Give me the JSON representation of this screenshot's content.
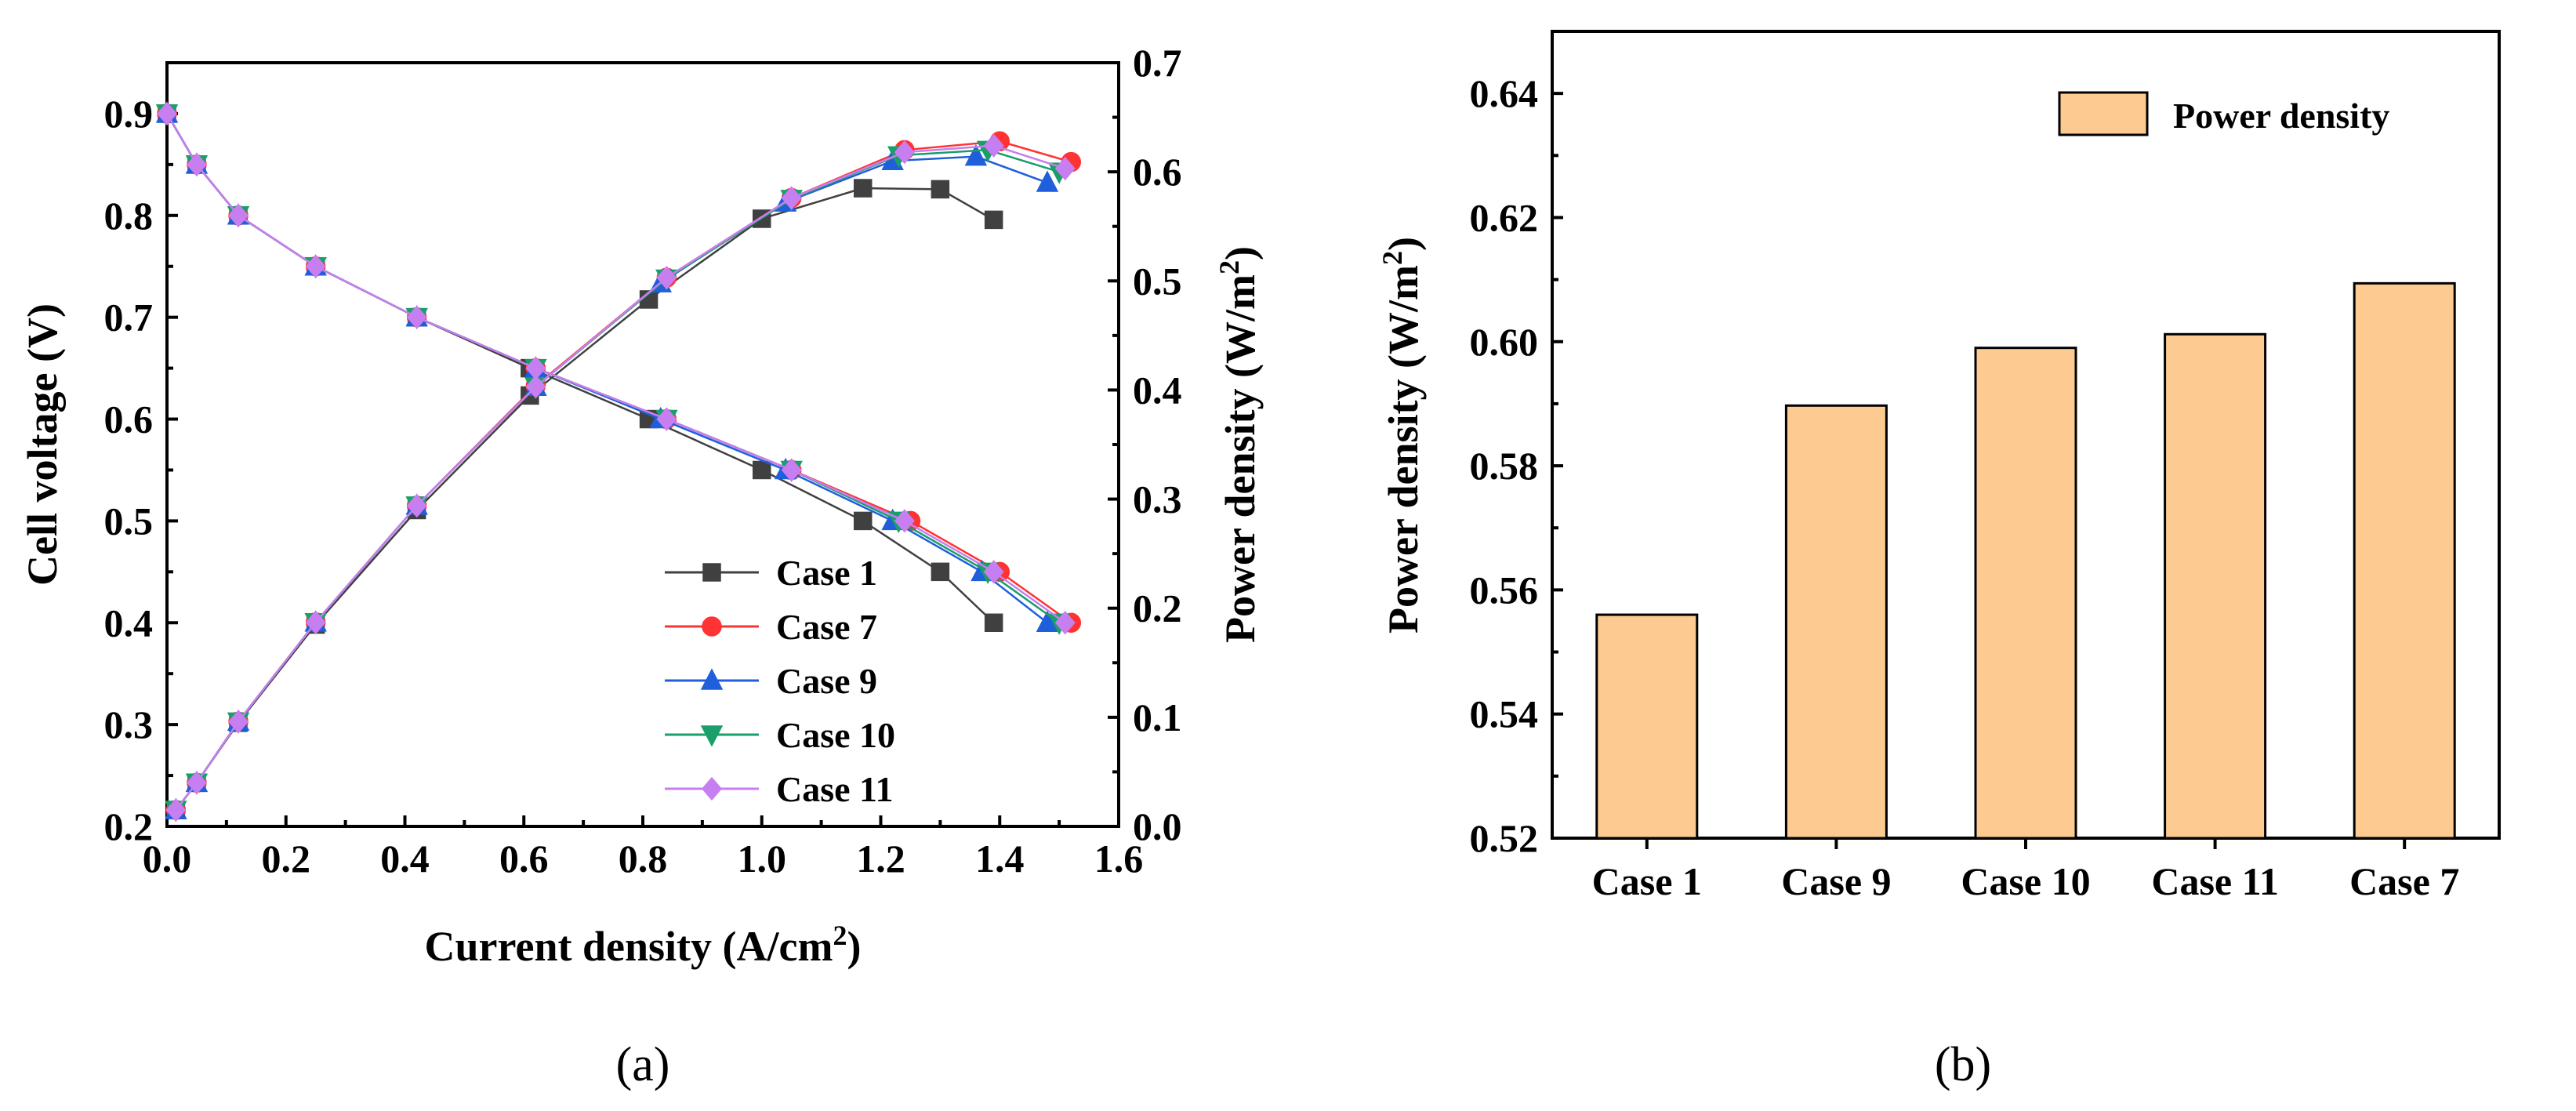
{
  "captions": {
    "a": "(a)",
    "b": "(b)"
  },
  "chart_data": [
    {
      "type": "line",
      "panel": "a",
      "xlabel": "Current density (A/cm",
      "xlabel_sup": "2",
      "xlabel_end": ")",
      "ylabel": "Cell voltage (V)",
      "y2label": "Power density (W/m",
      "y2label_sup": "2",
      "y2label_end": ")",
      "xlim": [
        0,
        1.6
      ],
      "ylim": [
        0.2,
        0.95
      ],
      "y2lim": [
        0,
        0.7
      ],
      "xticks": [
        "0.0",
        "0.2",
        "0.4",
        "0.6",
        "0.8",
        "1.0",
        "1.2",
        "1.4",
        "1.6"
      ],
      "yticks": [
        "0.2",
        "0.3",
        "0.4",
        "0.5",
        "0.6",
        "0.7",
        "0.8",
        "0.9"
      ],
      "y2ticks": [
        "0.0",
        "0.1",
        "0.2",
        "0.3",
        "0.4",
        "0.5",
        "0.6",
        "0.7"
      ],
      "legend_position": "bottom-right",
      "series": [
        {
          "name": "Case 1",
          "color": "#404040",
          "marker": "square",
          "voltage": [
            [
              0.0,
              0.9
            ],
            [
              0.05,
              0.85
            ],
            [
              0.12,
              0.8
            ],
            [
              0.25,
              0.75
            ],
            [
              0.42,
              0.7
            ],
            [
              0.61,
              0.65
            ],
            [
              0.81,
              0.6
            ],
            [
              1.0,
              0.55
            ],
            [
              1.17,
              0.5
            ],
            [
              1.3,
              0.45
            ],
            [
              1.39,
              0.4
            ]
          ],
          "power": [
            [
              0.015,
              0.015
            ],
            [
              0.05,
              0.04
            ],
            [
              0.12,
              0.095
            ],
            [
              0.25,
              0.185
            ],
            [
              0.42,
              0.29
            ],
            [
              0.61,
              0.395
            ],
            [
              0.81,
              0.483
            ],
            [
              1.0,
              0.557
            ],
            [
              1.17,
              0.585
            ],
            [
              1.3,
              0.584
            ],
            [
              1.39,
              0.556
            ]
          ]
        },
        {
          "name": "Case 7",
          "color": "#ff3333",
          "marker": "circle",
          "voltage": [
            [
              0.0,
              0.9
            ],
            [
              0.05,
              0.85
            ],
            [
              0.12,
              0.8
            ],
            [
              0.25,
              0.75
            ],
            [
              0.42,
              0.7
            ],
            [
              0.62,
              0.65
            ],
            [
              0.84,
              0.6
            ],
            [
              1.05,
              0.55
            ],
            [
              1.25,
              0.5
            ],
            [
              1.4,
              0.45
            ],
            [
              1.52,
              0.4
            ]
          ],
          "power": [
            [
              0.015,
              0.015
            ],
            [
              0.05,
              0.04
            ],
            [
              0.12,
              0.096
            ],
            [
              0.25,
              0.187
            ],
            [
              0.42,
              0.294
            ],
            [
              0.62,
              0.404
            ],
            [
              0.84,
              0.503
            ],
            [
              1.05,
              0.576
            ],
            [
              1.24,
              0.62
            ],
            [
              1.4,
              0.628
            ],
            [
              1.52,
              0.609
            ]
          ]
        },
        {
          "name": "Case 9",
          "color": "#1f5fdc",
          "marker": "triangle-up",
          "voltage": [
            [
              0.0,
              0.9
            ],
            [
              0.05,
              0.85
            ],
            [
              0.12,
              0.8
            ],
            [
              0.25,
              0.75
            ],
            [
              0.42,
              0.7
            ],
            [
              0.62,
              0.65
            ],
            [
              0.83,
              0.6
            ],
            [
              1.04,
              0.55
            ],
            [
              1.22,
              0.5
            ],
            [
              1.37,
              0.45
            ],
            [
              1.48,
              0.4
            ]
          ],
          "power": [
            [
              0.015,
              0.015
            ],
            [
              0.05,
              0.04
            ],
            [
              0.12,
              0.096
            ],
            [
              0.25,
              0.187
            ],
            [
              0.42,
              0.294
            ],
            [
              0.62,
              0.403
            ],
            [
              0.83,
              0.498
            ],
            [
              1.04,
              0.572
            ],
            [
              1.22,
              0.61
            ],
            [
              1.36,
              0.614
            ],
            [
              1.48,
              0.59
            ]
          ]
        },
        {
          "name": "Case 10",
          "color": "#1a9e6a",
          "marker": "triangle-down",
          "voltage": [
            [
              0.0,
              0.9
            ],
            [
              0.05,
              0.85
            ],
            [
              0.12,
              0.8
            ],
            [
              0.25,
              0.75
            ],
            [
              0.42,
              0.7
            ],
            [
              0.62,
              0.65
            ],
            [
              0.84,
              0.6
            ],
            [
              1.05,
              0.55
            ],
            [
              1.23,
              0.5
            ],
            [
              1.38,
              0.45
            ],
            [
              1.5,
              0.4
            ]
          ],
          "power": [
            [
              0.015,
              0.015
            ],
            [
              0.05,
              0.04
            ],
            [
              0.12,
              0.096
            ],
            [
              0.25,
              0.187
            ],
            [
              0.42,
              0.294
            ],
            [
              0.62,
              0.403
            ],
            [
              0.84,
              0.502
            ],
            [
              1.05,
              0.575
            ],
            [
              1.23,
              0.615
            ],
            [
              1.38,
              0.62
            ],
            [
              1.5,
              0.6
            ]
          ]
        },
        {
          "name": "Case 11",
          "color": "#c77ef0",
          "marker": "diamond",
          "voltage": [
            [
              0.0,
              0.9
            ],
            [
              0.05,
              0.85
            ],
            [
              0.12,
              0.8
            ],
            [
              0.25,
              0.75
            ],
            [
              0.42,
              0.7
            ],
            [
              0.62,
              0.65
            ],
            [
              0.84,
              0.6
            ],
            [
              1.05,
              0.55
            ],
            [
              1.24,
              0.5
            ],
            [
              1.39,
              0.45
            ],
            [
              1.51,
              0.4
            ]
          ],
          "power": [
            [
              0.015,
              0.015
            ],
            [
              0.05,
              0.04
            ],
            [
              0.12,
              0.096
            ],
            [
              0.25,
              0.187
            ],
            [
              0.42,
              0.294
            ],
            [
              0.62,
              0.403
            ],
            [
              0.84,
              0.503
            ],
            [
              1.05,
              0.576
            ],
            [
              1.24,
              0.618
            ],
            [
              1.39,
              0.624
            ],
            [
              1.51,
              0.603
            ]
          ]
        }
      ]
    },
    {
      "type": "bar",
      "panel": "b",
      "ylabel": "Power density (W/m",
      "ylabel_sup": "2",
      "ylabel_end": ")",
      "categories": [
        "Case 1",
        "Case 9",
        "Case 10",
        "Case 11",
        "Case 7"
      ],
      "values": [
        0.556,
        0.5897,
        0.599,
        0.6012,
        0.6094
      ],
      "ylim": [
        0.52,
        0.65
      ],
      "yticks": [
        "0.52",
        "0.54",
        "0.56",
        "0.58",
        "0.60",
        "0.62",
        "0.64"
      ],
      "legend": "Power density",
      "legend_position": "top-right",
      "bar_color": "#fdcb92"
    }
  ]
}
